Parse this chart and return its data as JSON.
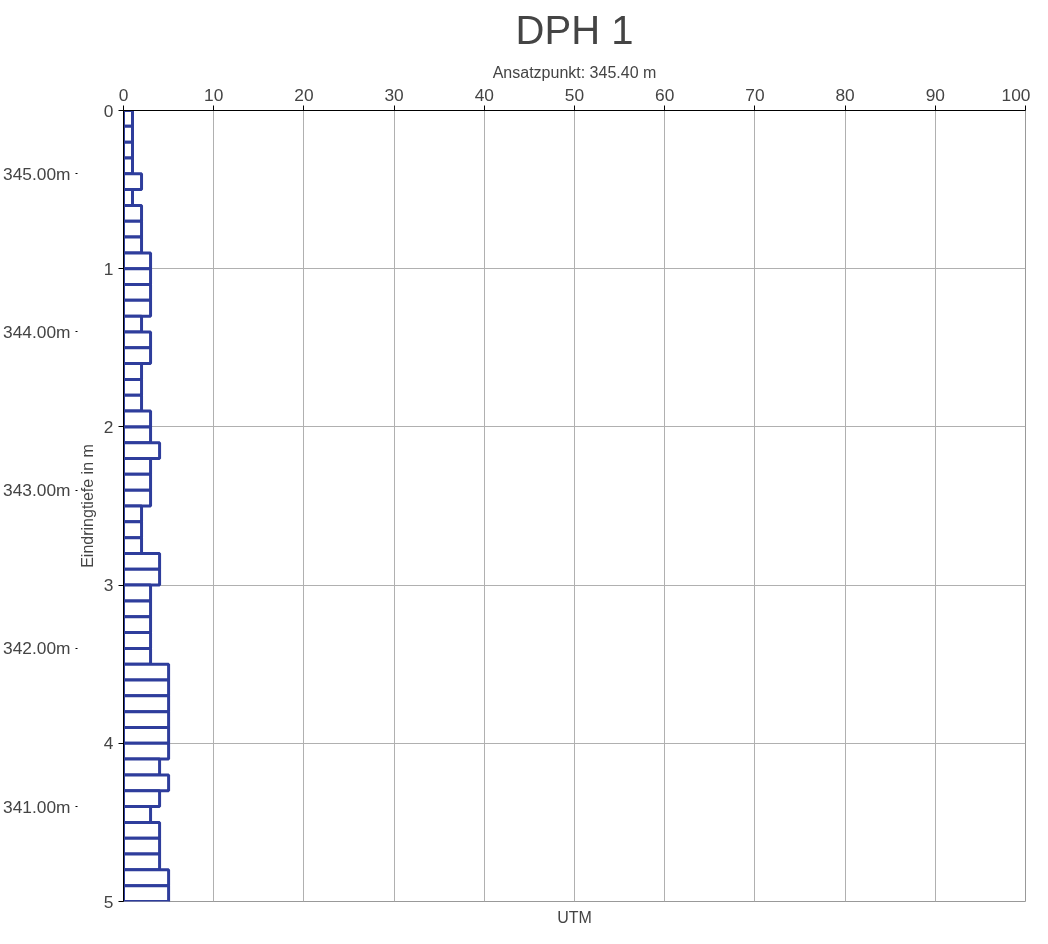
{
  "chart_data": {
    "type": "bar",
    "orientation": "horizontal",
    "title": "DPH 1",
    "subtitle": "Ansatzpunkt: 345.40 m",
    "xlabel": "UTM",
    "ylabel": "Eindringtiefe in m",
    "x": [
      0.05,
      0.15,
      0.25,
      0.35,
      0.45,
      0.55,
      0.65,
      0.75,
      0.85,
      0.95,
      1.05,
      1.15,
      1.25,
      1.35,
      1.45,
      1.55,
      1.65,
      1.75,
      1.85,
      1.95,
      2.05,
      2.15,
      2.25,
      2.35,
      2.45,
      2.55,
      2.65,
      2.75,
      2.85,
      2.95,
      3.05,
      3.15,
      3.25,
      3.35,
      3.45,
      3.55,
      3.65,
      3.75,
      3.85,
      3.95,
      4.05,
      4.15,
      4.25,
      4.35,
      4.45,
      4.55,
      4.65,
      4.75,
      4.85,
      4.95
    ],
    "values": [
      1,
      1,
      1,
      1,
      2,
      1,
      2,
      2,
      2,
      3,
      3,
      3,
      3,
      2,
      3,
      3,
      2,
      2,
      2,
      3,
      3,
      4,
      3,
      3,
      3,
      2,
      2,
      2,
      4,
      4,
      3,
      3,
      3,
      3,
      3,
      5,
      5,
      5,
      5,
      5,
      5,
      4,
      5,
      4,
      3,
      4,
      4,
      4,
      5,
      5
    ],
    "color": "#2e3d9c",
    "xlim": [
      0,
      100
    ],
    "xticks": [
      0,
      10,
      20,
      30,
      40,
      50,
      60,
      70,
      80,
      90,
      100
    ],
    "ylim": [
      5,
      0
    ],
    "yticks": [
      0,
      1,
      2,
      3,
      4,
      5
    ],
    "y2lim": [
      340.4,
      345.4
    ],
    "y2ticks": [
      {
        "value": 345.0,
        "label": "345.00m"
      },
      {
        "value": 344.0,
        "label": "344.00m"
      },
      {
        "value": 343.0,
        "label": "343.00m"
      },
      {
        "value": 342.0,
        "label": "342.00m"
      },
      {
        "value": 341.0,
        "label": "341.00m"
      }
    ],
    "grid": true
  }
}
